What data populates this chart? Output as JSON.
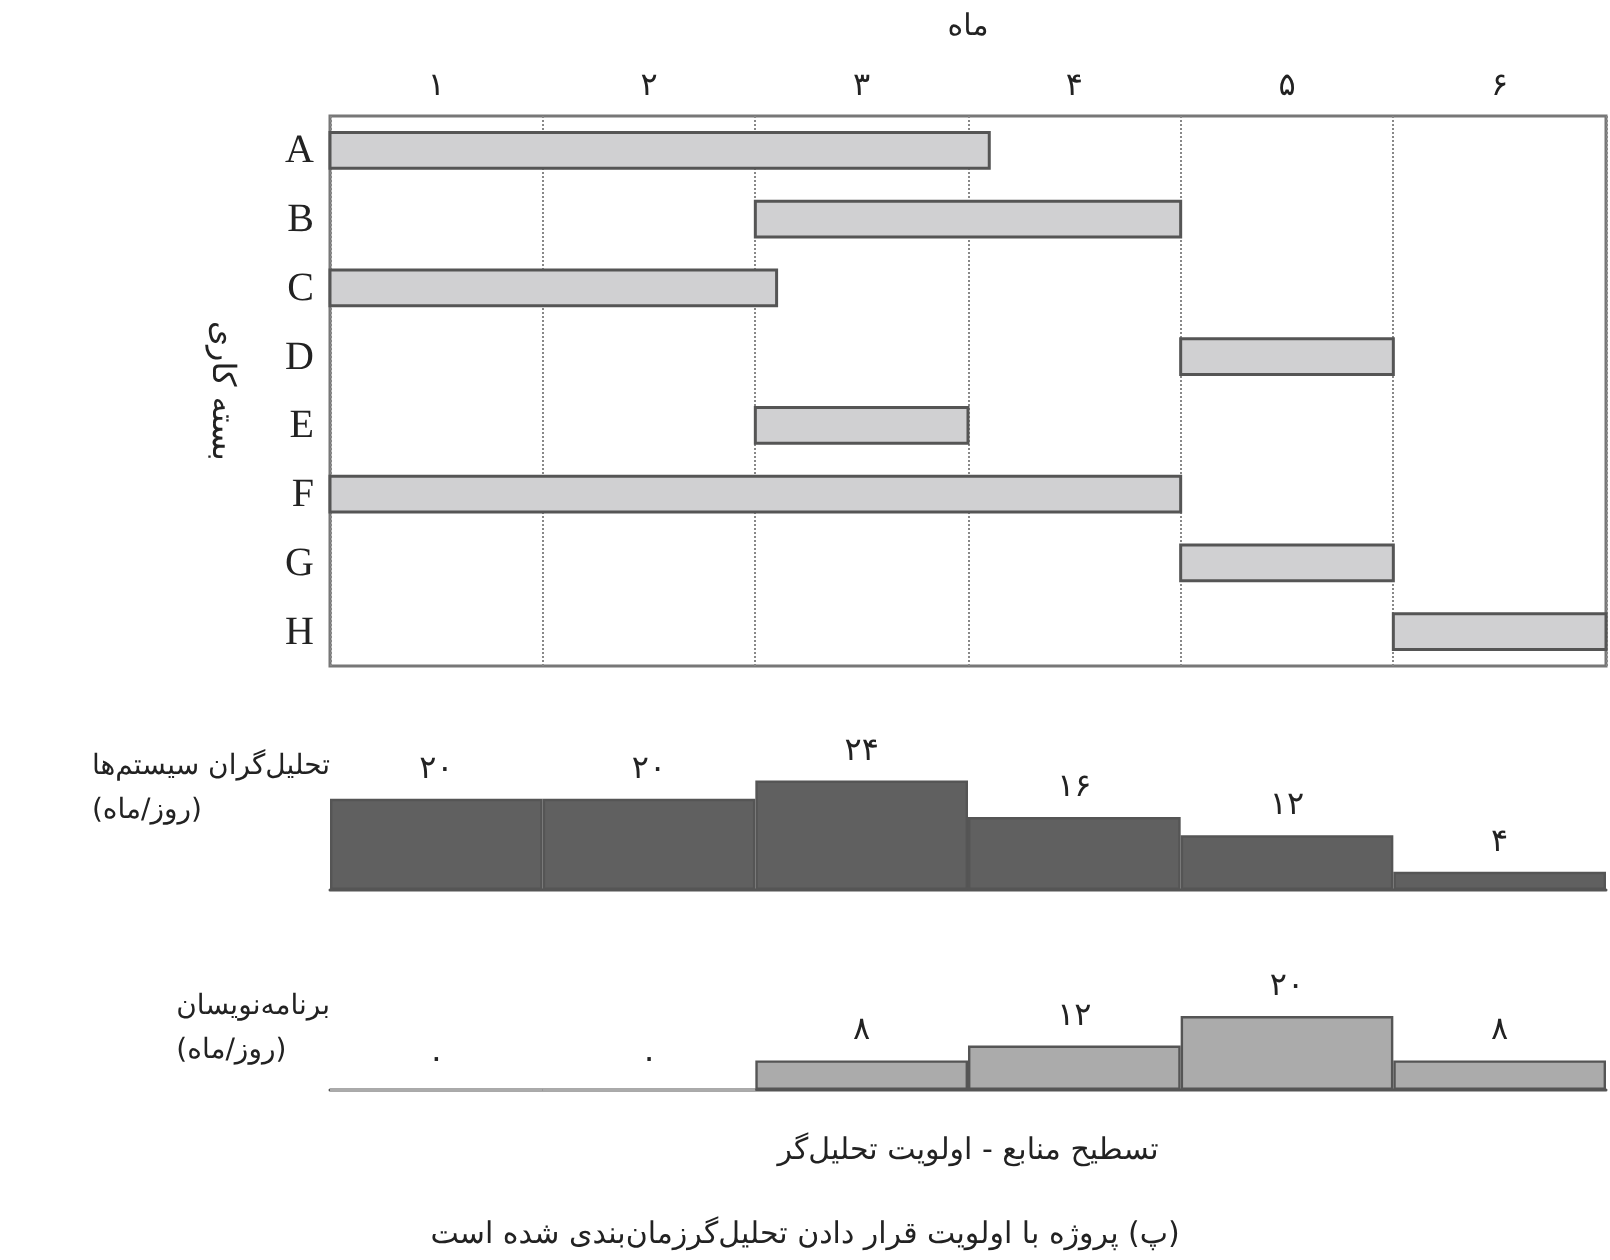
{
  "chart_data": [
    {
      "type": "bar",
      "orientation": "horizontal",
      "xlabel": "ماه",
      "ylabel": "بسته کاری",
      "categories": [
        "A",
        "B",
        "C",
        "D",
        "E",
        "F",
        "G",
        "H"
      ],
      "base": [
        0,
        2,
        0,
        4,
        2,
        0,
        4,
        5
      ],
      "values": [
        3.1,
        2,
        2.1,
        1,
        1,
        4,
        1,
        1
      ],
      "color": "#d0d0d2",
      "xlim": [
        0,
        6
      ],
      "xticks": [
        {
          "value": 0,
          "label": null
        },
        {
          "value": 0.5,
          "label": "۱"
        },
        {
          "value": 1,
          "label": null
        },
        {
          "value": 1.5,
          "label": "۲"
        },
        {
          "value": 2,
          "label": null
        },
        {
          "value": 2.5,
          "label": "۳"
        },
        {
          "value": 3,
          "label": null
        },
        {
          "value": 3.5,
          "label": "۴"
        },
        {
          "value": 4,
          "label": null
        },
        {
          "value": 4.5,
          "label": "۵"
        },
        {
          "value": 5,
          "label": null
        },
        {
          "value": 5.5,
          "label": "۶"
        },
        {
          "value": 6,
          "label": null
        }
      ],
      "grid": "x"
    },
    {
      "type": "bar",
      "ylabel": "تحلیل‌گران سیستم‌ها\n(روز/ماه)",
      "categories": [
        null,
        null,
        null,
        null,
        null,
        null
      ],
      "values": [
        20,
        20,
        24,
        16,
        12,
        4
      ],
      "value_labels": [
        "۲۰",
        "۲۰",
        "۲۴",
        "۱۶",
        "۱۲",
        "۴"
      ],
      "color": "#606060"
    },
    {
      "type": "bar",
      "ylabel": "برنامه‌نویسان\n(روز/ماه)",
      "xlabel": "تسطیح منابع - اولویت تحلیل‌گر",
      "categories": [
        null,
        null,
        null,
        null,
        null,
        null
      ],
      "values": [
        0,
        0,
        8,
        12,
        20,
        8
      ],
      "value_labels": [
        "۰",
        "۰",
        "۸",
        "۱۲",
        "۲۰",
        "۸"
      ],
      "color": "#ababab",
      "annotations": [
        "(پ) پروژه با اولویت قرار دادن تحلیل‌گرزمان‌بندی شده است"
      ]
    }
  ]
}
